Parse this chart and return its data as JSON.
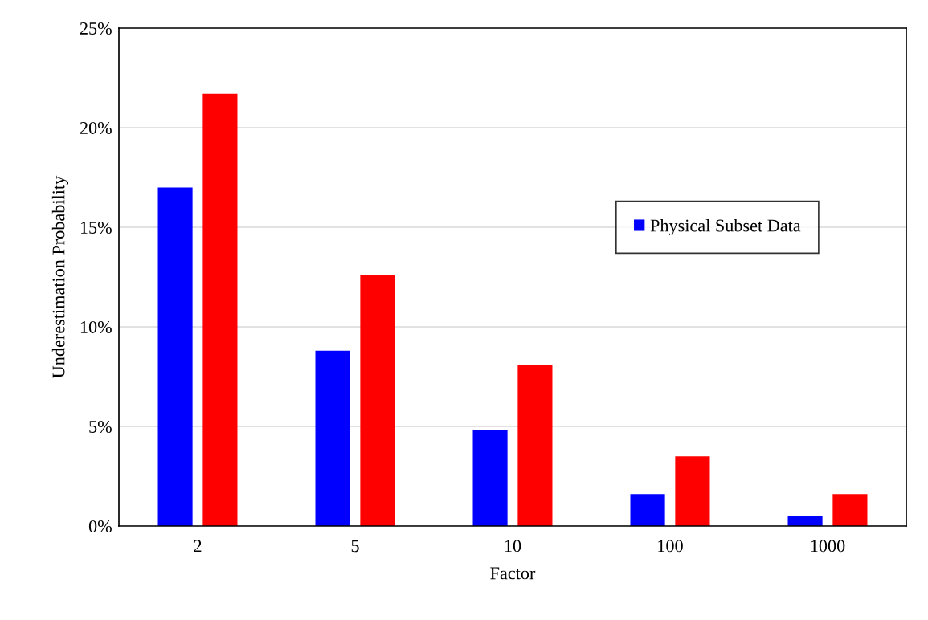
{
  "chart_data": {
    "type": "bar",
    "xlabel": "Factor",
    "ylabel": "Underestimation Probability",
    "categories": [
      "2",
      "5",
      "10",
      "100",
      "1000"
    ],
    "series": [
      {
        "name": "Physical Subset Data",
        "color": "#0000ff",
        "values": [
          17.0,
          8.8,
          4.8,
          1.6,
          0.5
        ]
      },
      {
        "color": "#ff0000",
        "values": [
          21.7,
          12.6,
          8.1,
          3.5,
          1.6
        ]
      }
    ],
    "ylim": [
      0,
      25
    ],
    "yticks": [
      {
        "value": 0,
        "label": "0%"
      },
      {
        "value": 5,
        "label": "5%"
      },
      {
        "value": 10,
        "label": "10%"
      },
      {
        "value": 15,
        "label": "15%"
      },
      {
        "value": 20,
        "label": "20%"
      },
      {
        "value": 25,
        "label": "25%"
      }
    ],
    "grid": "y",
    "legend": "right"
  }
}
